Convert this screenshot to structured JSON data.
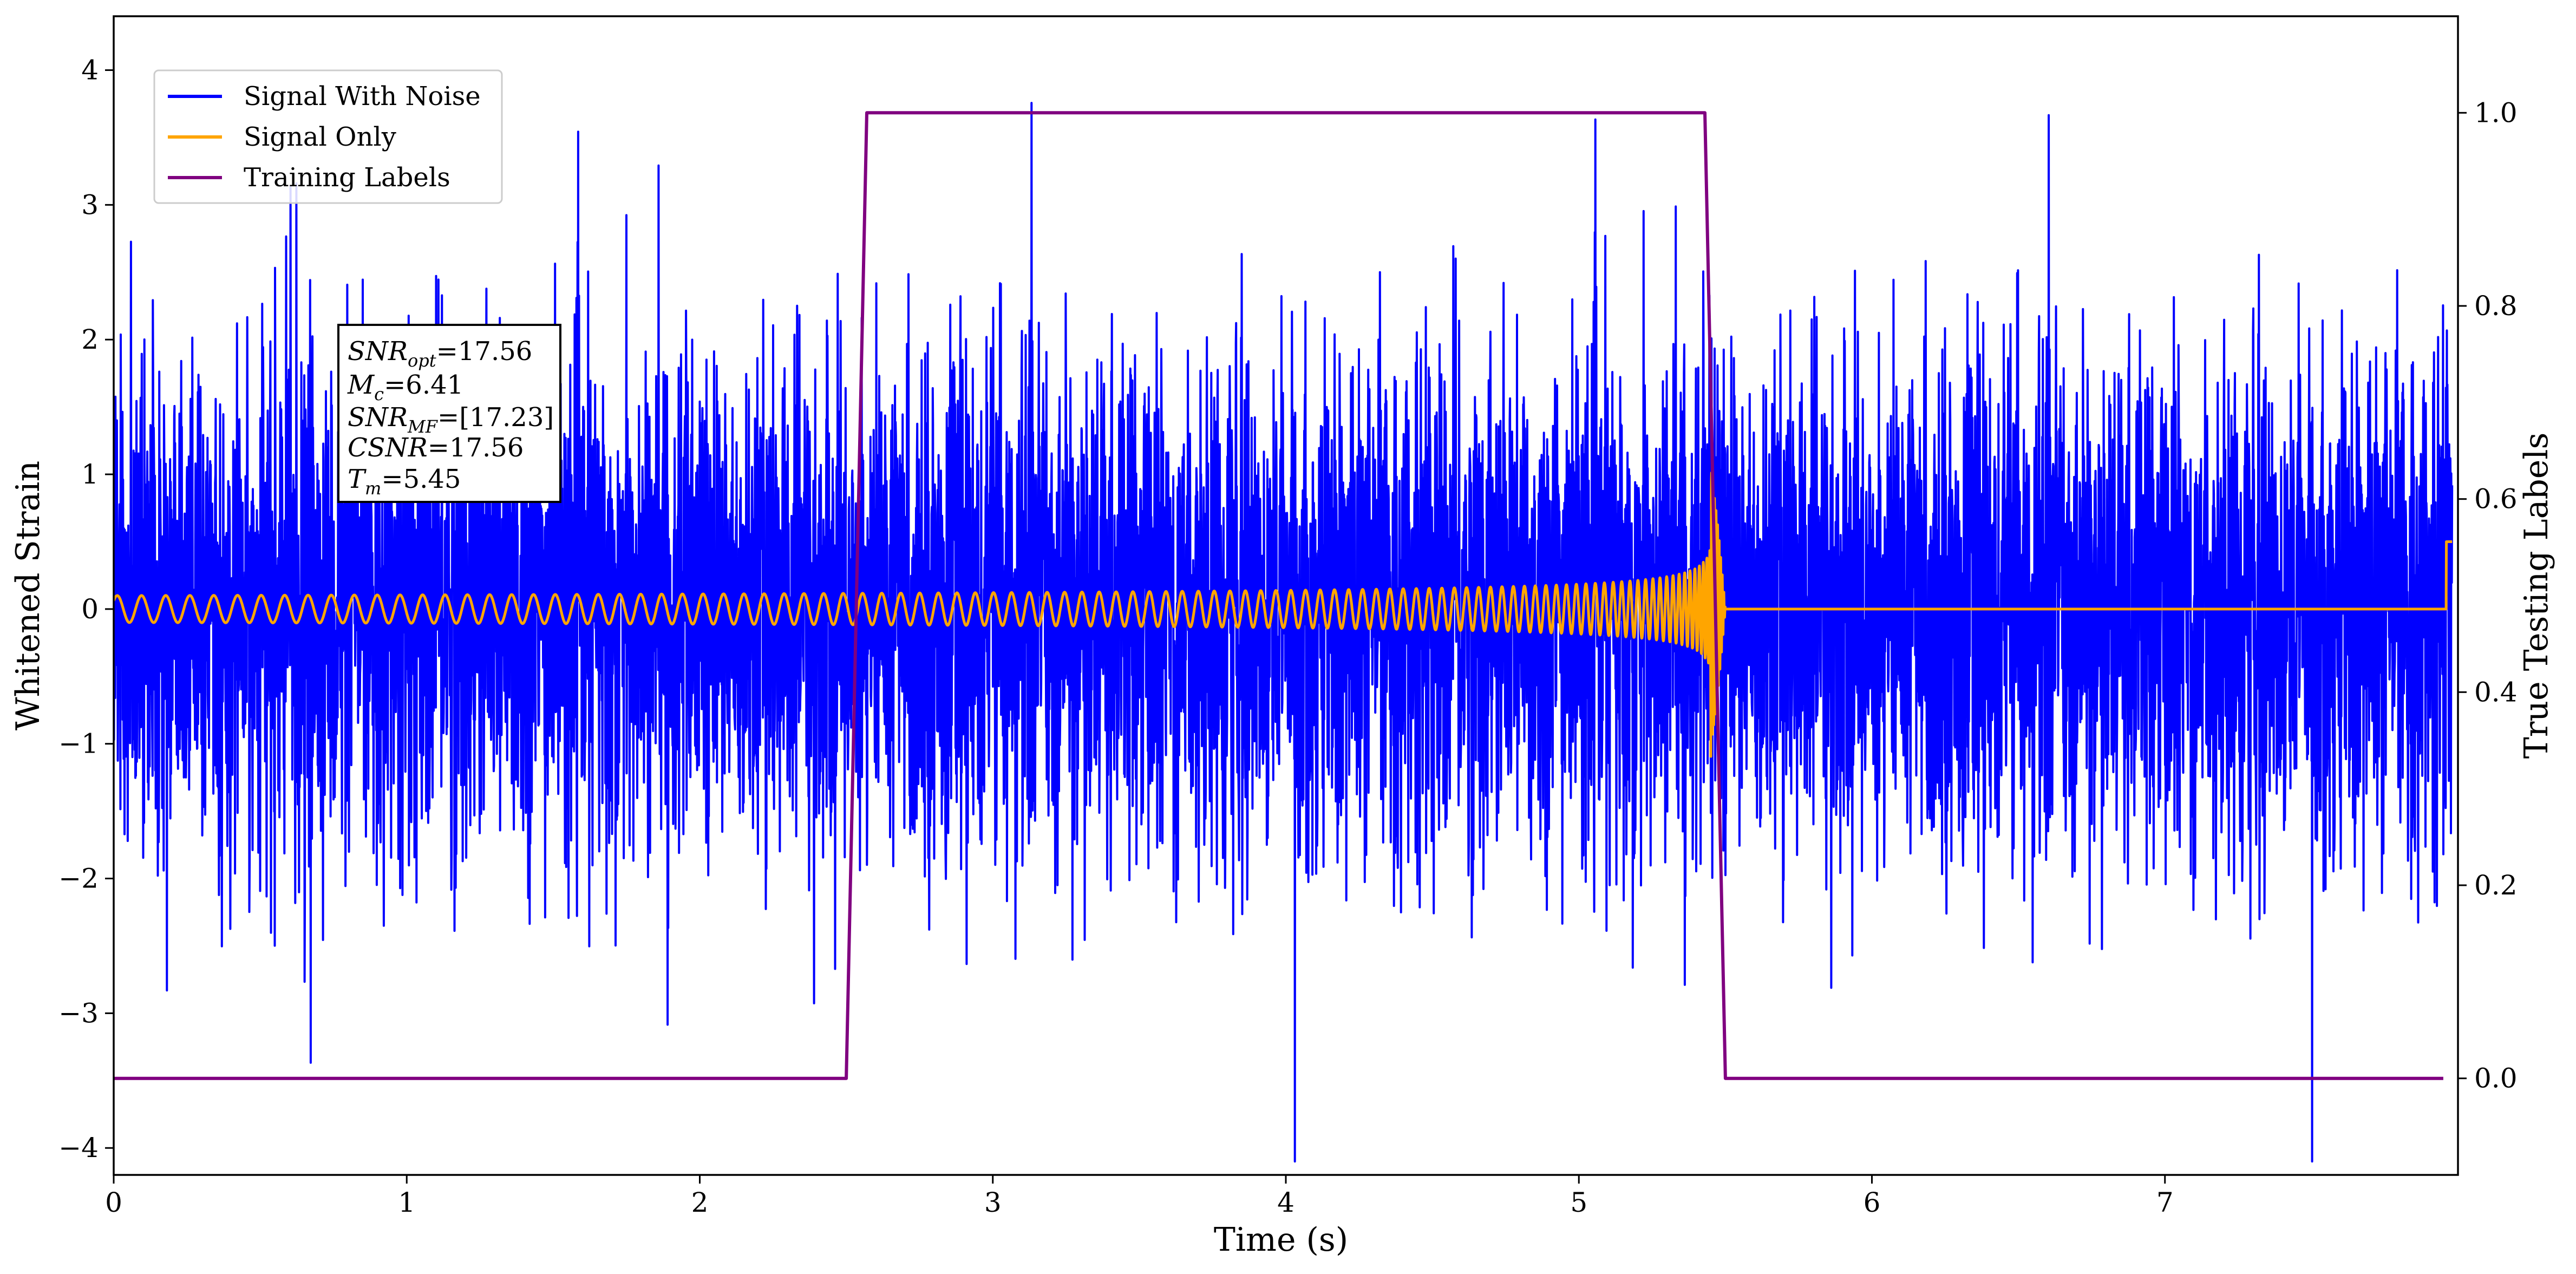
{
  "chart_data": {
    "type": "line",
    "xlabel": "Time (s)",
    "ylabel": "Whitened Strain",
    "ylabel_right": "True Testing Labels",
    "xlim": [
      0,
      8
    ],
    "ylim": [
      -4.2,
      4.4
    ],
    "ylim_right": [
      -0.1,
      1.1
    ],
    "x_ticks": [
      "0",
      "1",
      "2",
      "3",
      "4",
      "5",
      "6",
      "7"
    ],
    "y_ticks": [
      "−4",
      "−3",
      "−2",
      "−1",
      "0",
      "1",
      "2",
      "3",
      "4"
    ],
    "y_ticks_right": [
      "0.0",
      "0.2",
      "0.4",
      "0.6",
      "0.8",
      "1.0"
    ],
    "grid": false,
    "legend_position": "upper-left",
    "series": [
      {
        "name": "Signal With Noise",
        "color": "#0000ff",
        "axis": "left",
        "description_values": {
          "noise_std": 0.9,
          "typical_range": [
            -2.5,
            2.5
          ],
          "max": 4.02,
          "min": -4.1
        }
      },
      {
        "name": "Signal Only",
        "color": "#ffa500",
        "axis": "left",
        "chirp": {
          "t_start": 0,
          "t_merger": 5.45,
          "amp_start": 0.1,
          "amp_peak": 1.2,
          "post_merger_value": 0.0,
          "end_value": 0.5
        }
      },
      {
        "name": "Training Labels",
        "color": "#800080",
        "axis": "right",
        "x": [
          0,
          2.5,
          2.57,
          5.43,
          5.5,
          7.95
        ],
        "y": [
          0,
          0,
          1,
          1,
          0,
          0
        ]
      }
    ],
    "annotation": {
      "lines": [
        {
          "var": "SNR",
          "sub": "opt",
          "eq": "=17.56"
        },
        {
          "var": "M",
          "sub": "c",
          "eq": "=6.41"
        },
        {
          "var": "SNR",
          "sub": "MF",
          "eq": "=[17.23]"
        },
        {
          "var": "CSNR",
          "sub": "",
          "eq": "=17.56"
        },
        {
          "var": "T",
          "sub": "m",
          "eq": "=5.45"
        }
      ]
    }
  }
}
